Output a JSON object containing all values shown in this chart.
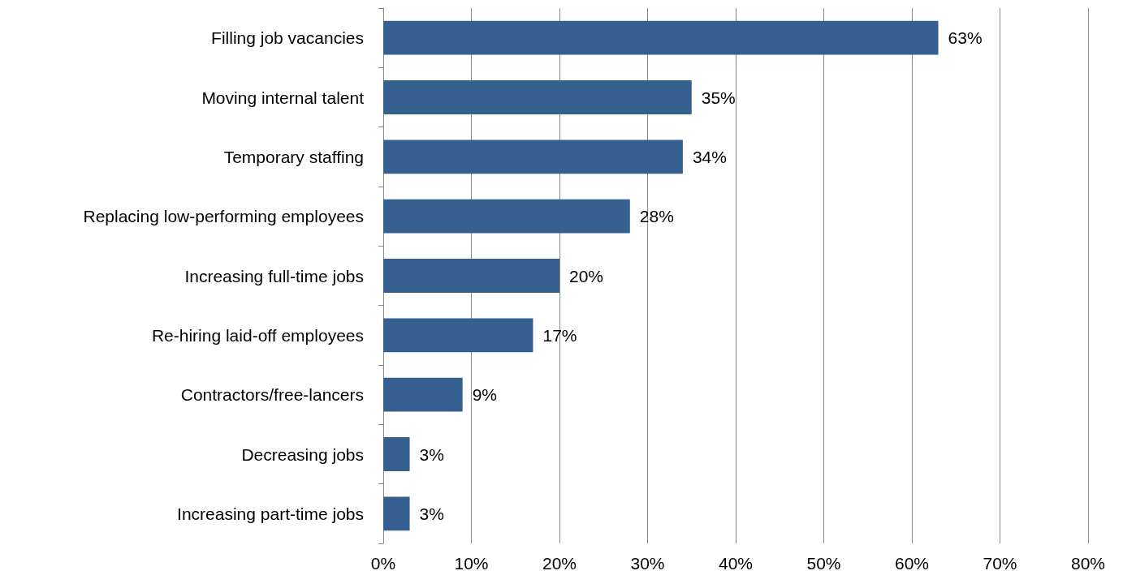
{
  "chart_data": {
    "type": "bar",
    "orientation": "horizontal",
    "categories": [
      "Filling job vacancies",
      "Moving internal talent",
      "Temporary staffing",
      "Replacing low-performing employees",
      "Increasing full-time jobs",
      "Re-hiring laid-off employees",
      "Contractors/free-lancers",
      "Decreasing jobs",
      "Increasing part-time jobs"
    ],
    "values": [
      63,
      35,
      34,
      28,
      20,
      17,
      9,
      3,
      3
    ],
    "value_labels": [
      "63%",
      "35%",
      "34%",
      "28%",
      "20%",
      "17%",
      "9%",
      "3%",
      "3%"
    ],
    "color": "#35608f",
    "xlim": [
      0,
      80
    ],
    "xticks": [
      {
        "value": 0,
        "label": "0%"
      },
      {
        "value": 10,
        "label": "10%"
      },
      {
        "value": 20,
        "label": "20%"
      },
      {
        "value": 30,
        "label": "30%"
      },
      {
        "value": 40,
        "label": "40%"
      },
      {
        "value": 50,
        "label": "50%"
      },
      {
        "value": 60,
        "label": "60%"
      },
      {
        "value": 70,
        "label": "70%"
      },
      {
        "value": 80,
        "label": "80%"
      }
    ],
    "grid": "x"
  }
}
